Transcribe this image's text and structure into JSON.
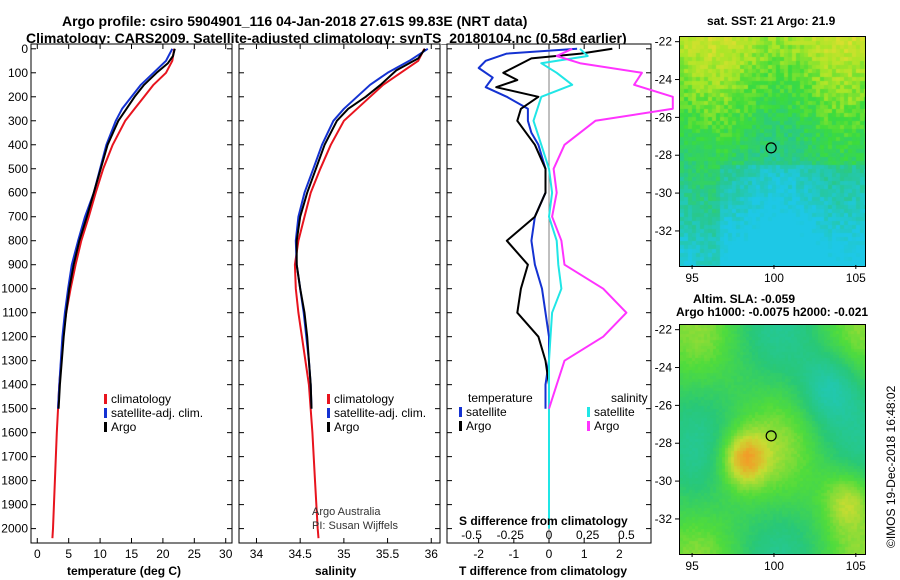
{
  "header": {
    "line1": "Argo profile: csiro 5904901_116 04-Jan-2018 27.61S 99.83E (NRT data)",
    "line2": "Climatology: CARS2009. Satellite-adjusted climatology: synTS_20180104.nc (0.58d earlier)"
  },
  "depth_ticks": [
    0,
    100,
    200,
    300,
    400,
    500,
    600,
    700,
    800,
    900,
    1000,
    1100,
    1200,
    1300,
    1400,
    1500,
    1600,
    1700,
    1800,
    1900,
    2000
  ],
  "colors": {
    "climatology": "#e8141e",
    "satellite": "#1432d2",
    "argo": "#000000",
    "sal_satellite": "#20e6e6",
    "sal_argo": "#ff33ff"
  },
  "chart_data": [
    {
      "type": "line",
      "id": "temperature",
      "xlabel": "temperature (deg C)",
      "xlim": [
        -1,
        31
      ],
      "xticks": [
        0,
        5,
        10,
        15,
        20,
        25,
        30
      ],
      "ylim": [
        2060,
        -20
      ],
      "legend": [
        "climatology",
        "satellite-adj. clim.",
        "Argo"
      ],
      "series": [
        {
          "name": "climatology",
          "color": "#e8141e",
          "depth": [
            0,
            50,
            100,
            150,
            200,
            250,
            300,
            400,
            500,
            600,
            700,
            800,
            900,
            1000,
            1100,
            1200,
            1400,
            1600,
            1800,
            2000,
            2040
          ],
          "values": [
            21.8,
            21.5,
            20.5,
            18.5,
            17,
            15.5,
            14,
            12,
            10.5,
            9.3,
            8.2,
            7,
            6.1,
            5.3,
            4.6,
            4.1,
            3.5,
            3.1,
            2.8,
            2.5,
            2.4
          ]
        },
        {
          "name": "satellite",
          "color": "#1432d2",
          "depth": [
            0,
            50,
            100,
            150,
            200,
            250,
            300,
            400,
            500,
            600,
            700,
            800,
            900,
            1000,
            1100,
            1200,
            1400,
            1500
          ],
          "values": [
            21.5,
            20.5,
            18.5,
            16.5,
            15,
            13.5,
            12.5,
            11,
            10,
            9,
            7.6,
            6.5,
            5.5,
            4.9,
            4.4,
            4,
            3.5,
            3.3
          ]
        },
        {
          "name": "Argo",
          "color": "#000000",
          "depth": [
            0,
            30,
            60,
            100,
            150,
            200,
            250,
            300,
            400,
            500,
            600,
            700,
            800,
            900,
            1000,
            1100,
            1200,
            1400,
            1500
          ],
          "values": [
            21.9,
            21.6,
            20.8,
            19,
            17,
            15.5,
            14.2,
            12.9,
            11.2,
            10.1,
            9,
            7.9,
            6.7,
            5.8,
            5.1,
            4.6,
            4.2,
            3.6,
            3.4
          ]
        }
      ]
    },
    {
      "type": "line",
      "id": "salinity",
      "xlabel": "salinity",
      "xlim": [
        33.8,
        36.1
      ],
      "xticks": [
        34,
        34.5,
        35,
        35.5,
        36
      ],
      "xticklabels": [
        "34",
        "34.5",
        "35",
        "35.5",
        "36"
      ],
      "ylim": [
        2060,
        -20
      ],
      "legend": [
        "climatology",
        "satellite-adj. clim.",
        "Argo"
      ],
      "series": [
        {
          "name": "climatology",
          "color": "#e8141e",
          "depth": [
            0,
            50,
            100,
            150,
            200,
            250,
            300,
            400,
            500,
            600,
            700,
            800,
            900,
            1000,
            1100,
            1200,
            1300,
            1400,
            1600,
            1800,
            2000,
            2040
          ],
          "values": [
            35.92,
            35.85,
            35.65,
            35.45,
            35.3,
            35.15,
            35.0,
            34.85,
            34.73,
            34.62,
            34.55,
            34.48,
            34.44,
            34.45,
            34.48,
            34.52,
            34.56,
            34.6,
            34.64,
            34.67,
            34.7,
            34.71
          ]
        },
        {
          "name": "satellite",
          "color": "#1432d2",
          "depth": [
            0,
            50,
            100,
            150,
            200,
            250,
            300,
            400,
            500,
            600,
            700,
            800,
            900,
            1000,
            1100,
            1200,
            1300,
            1400,
            1500
          ],
          "values": [
            35.96,
            35.75,
            35.5,
            35.3,
            35.15,
            35.0,
            34.88,
            34.75,
            34.65,
            34.55,
            34.48,
            34.45,
            34.46,
            34.5,
            34.54,
            34.57,
            34.6,
            34.62,
            34.63
          ]
        },
        {
          "name": "Argo",
          "color": "#000000",
          "depth": [
            0,
            40,
            90,
            150,
            200,
            250,
            300,
            400,
            500,
            600,
            700,
            800,
            900,
            1000,
            1100,
            1200,
            1300,
            1400,
            1500
          ],
          "values": [
            35.93,
            35.85,
            35.6,
            35.42,
            35.25,
            35.05,
            34.92,
            34.78,
            34.68,
            34.58,
            34.5,
            34.46,
            34.46,
            34.5,
            34.55,
            34.58,
            34.6,
            34.62,
            34.63
          ]
        }
      ]
    },
    {
      "type": "line",
      "id": "difference",
      "xlabel": "T difference from climatology",
      "xlim": [
        -2.9,
        2.9
      ],
      "xticks": [
        -2,
        -1,
        0,
        1,
        2
      ],
      "s_xlabel": "S difference from climatology",
      "s_xticks": [
        -0.5,
        -0.25,
        0,
        0.25,
        0.5
      ],
      "s_xticklabels": [
        "-0.5",
        "-0.25",
        "0",
        "0.25",
        "0.5"
      ],
      "ylim": [
        2060,
        -20
      ],
      "legend_temperature": {
        "title": "temperature",
        "items": [
          "satellite",
          "Argo"
        ]
      },
      "legend_salinity": {
        "title": "salinity",
        "items": [
          "satellite",
          "Argo"
        ]
      },
      "series": [
        {
          "name": "T satellite",
          "color": "#1432d2",
          "depth": [
            0,
            20,
            50,
            80,
            120,
            160,
            200,
            250,
            300,
            350,
            400,
            500,
            600,
            700,
            800,
            900,
            1000,
            1100,
            1200,
            1300,
            1400,
            1500
          ],
          "values": [
            0.8,
            -1.2,
            -1.8,
            -2.0,
            -1.6,
            -1.8,
            -1.2,
            -0.6,
            -0.6,
            -0.5,
            -0.3,
            -0.1,
            -0.1,
            -0.4,
            -0.5,
            -0.4,
            -0.2,
            -0.1,
            0,
            0,
            -0.1,
            -0.1
          ]
        },
        {
          "name": "T Argo",
          "color": "#000000",
          "depth": [
            0,
            20,
            40,
            70,
            100,
            130,
            160,
            200,
            250,
            300,
            400,
            500,
            600,
            700,
            800,
            900,
            1000,
            1100,
            1200,
            1300,
            1400,
            1500
          ],
          "values": [
            1.8,
            0.9,
            -0.5,
            -0.9,
            -1.3,
            -0.9,
            -1.5,
            -0.3,
            -0.8,
            -0.9,
            -0.4,
            -0.1,
            -0.1,
            -0.4,
            -1.2,
            -0.6,
            -0.8,
            -0.9,
            -0.3,
            -0.1,
            0,
            0
          ]
        },
        {
          "name": "S satellite",
          "color": "#20e6e6",
          "depth": [
            0,
            30,
            60,
            100,
            150,
            200,
            300,
            400,
            500,
            600,
            700,
            800,
            900,
            1000,
            1100,
            1200,
            1300,
            1400,
            1600,
            1800,
            2000
          ],
          "values": [
            0.2,
            0.25,
            -0.05,
            0.05,
            0.15,
            -0.05,
            -0.1,
            -0.05,
            0,
            0.02,
            0,
            0.05,
            0.06,
            0.08,
            0.02,
            0.01,
            0,
            0,
            0,
            0,
            0
          ]
        },
        {
          "name": "S Argo",
          "color": "#ff33ff",
          "depth": [
            0,
            30,
            60,
            100,
            150,
            200,
            250,
            300,
            400,
            500,
            600,
            700,
            800,
            900,
            1000,
            1100,
            1200,
            1300,
            1400,
            1500
          ],
          "values": [
            0.15,
            0.05,
            0.2,
            0.6,
            0.55,
            0.8,
            0.8,
            0.3,
            0.1,
            0.03,
            0.05,
            0.02,
            0.08,
            0.1,
            0.35,
            0.5,
            0.35,
            0.1,
            0.05,
            0
          ]
        }
      ]
    },
    {
      "type": "heatmap",
      "id": "sst_map",
      "title": "sat. SST: 21 Argo: 21.9",
      "xticks": [
        95,
        100,
        105
      ],
      "yticks": [
        -22,
        -24,
        -26,
        -28,
        -30,
        -32
      ],
      "xlim": [
        94.2,
        105.5
      ],
      "ylim": [
        -33.8,
        -21.7
      ],
      "marker": [
        99.83,
        -27.61
      ]
    },
    {
      "type": "heatmap",
      "id": "sla_map",
      "title": "Altim. SLA: -0.059",
      "subtitle": "Argo h1000: -0.0075 h2000: -0.021",
      "xticks": [
        95,
        100,
        105
      ],
      "yticks": [
        -22,
        -24,
        -26,
        -28,
        -30,
        -32
      ],
      "xlim": [
        94.2,
        105.5
      ],
      "ylim": [
        -33.8,
        -21.7
      ],
      "marker": [
        99.83,
        -27.61
      ]
    }
  ],
  "annotations": {
    "argo_australia": "Argo Australia",
    "pi": "PI: Susan Wijffels",
    "imos": "©IMOS 19-Dec-2018 16:48:02"
  }
}
